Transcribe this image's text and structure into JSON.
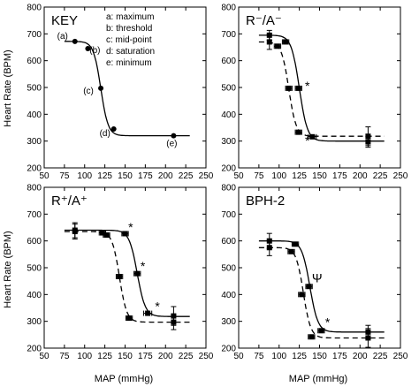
{
  "figure": {
    "y_axis_label": "Heart Rate (BPM)",
    "x_axis_label": "MAP (mmHg)"
  },
  "chart_data": [
    {
      "type": "line",
      "panel_label": "KEY",
      "xlabel": "",
      "ylabel": "Heart Rate (BPM)",
      "xlim": [
        50,
        250
      ],
      "ylim": [
        200,
        800
      ],
      "x_ticks": [
        50,
        75,
        100,
        125,
        150,
        175,
        200,
        225,
        250
      ],
      "y_ticks": [
        200,
        300,
        400,
        500,
        600,
        700,
        800
      ],
      "legend": [
        "a: maximum",
        "b: threshold",
        "c: mid-point",
        "d: saturation",
        "e: minimum"
      ],
      "series": [
        {
          "style": "solid",
          "curve": {
            "max": 672,
            "min": 320,
            "mid": 120,
            "k": 0.22
          },
          "points": [
            {
              "x": 88,
              "y": 672,
              "label": "(a)"
            },
            {
              "x": 104,
              "y": 645,
              "label": "(b)"
            },
            {
              "x": 120,
              "y": 497,
              "label": "(c)"
            },
            {
              "x": 136,
              "y": 345,
              "label": "(d)"
            },
            {
              "x": 210,
              "y": 320,
              "label": "(e)"
            }
          ]
        }
      ]
    },
    {
      "type": "line",
      "panel_label": "R⁻/A⁻",
      "xlabel": "",
      "ylabel": "",
      "xlim": [
        50,
        250
      ],
      "ylim": [
        200,
        800
      ],
      "x_ticks": [
        50,
        75,
        100,
        125,
        150,
        175,
        200,
        225,
        250
      ],
      "y_ticks": [
        200,
        300,
        400,
        500,
        600,
        700,
        800
      ],
      "annotations": [
        {
          "text": "*",
          "x": 135,
          "y": 490
        },
        {
          "text": "*",
          "x": 135,
          "y": 285
        }
      ],
      "series": [
        {
          "style": "solid",
          "curve": {
            "max": 695,
            "min": 300,
            "mid": 125,
            "k": 0.2
          },
          "points": [
            {
              "x": 88,
              "y": 695,
              "err": 18
            },
            {
              "x": 108,
              "y": 670,
              "xerr": 4
            },
            {
              "x": 124,
              "y": 497,
              "xerr": 4
            },
            {
              "x": 141,
              "y": 316,
              "xerr": 5
            },
            {
              "x": 210,
              "y": 297,
              "err": 20
            }
          ]
        },
        {
          "style": "dashed",
          "curve": {
            "max": 670,
            "min": 318,
            "mid": 112,
            "k": 0.22
          },
          "points": [
            {
              "x": 88,
              "y": 670,
              "err": 28
            },
            {
              "x": 98,
              "y": 654,
              "xerr": 4
            },
            {
              "x": 112,
              "y": 497,
              "xerr": 4
            },
            {
              "x": 124,
              "y": 333,
              "xerr": 4
            },
            {
              "x": 210,
              "y": 318,
              "err": 35
            }
          ]
        }
      ]
    },
    {
      "type": "line",
      "panel_label": "R⁺/A⁺",
      "xlabel": "MAP (mmHg)",
      "ylabel": "Heart Rate (BPM)",
      "xlim": [
        50,
        250
      ],
      "ylim": [
        200,
        800
      ],
      "x_ticks": [
        50,
        75,
        100,
        125,
        150,
        175,
        200,
        225,
        250
      ],
      "y_ticks": [
        200,
        300,
        400,
        500,
        600,
        700,
        800
      ],
      "annotations": [
        {
          "text": "*",
          "x": 157,
          "y": 635
        },
        {
          "text": "*",
          "x": 172,
          "y": 490
        },
        {
          "text": "*",
          "x": 190,
          "y": 340
        }
      ],
      "series": [
        {
          "style": "solid",
          "curve": {
            "max": 640,
            "min": 318,
            "mid": 165,
            "k": 0.2
          },
          "points": [
            {
              "x": 88,
              "y": 640,
              "err": 28
            },
            {
              "x": 122,
              "y": 630,
              "xerr": 4
            },
            {
              "x": 150,
              "y": 627,
              "xerr": 4
            },
            {
              "x": 165,
              "y": 478,
              "xerr": 4
            },
            {
              "x": 178,
              "y": 330,
              "xerr": 5
            },
            {
              "x": 210,
              "y": 320,
              "err": 35
            }
          ]
        },
        {
          "style": "dashed",
          "curve": {
            "max": 635,
            "min": 297,
            "mid": 143,
            "k": 0.22
          },
          "points": [
            {
              "x": 88,
              "y": 635,
              "err": 28
            },
            {
              "x": 127,
              "y": 622,
              "xerr": 4
            },
            {
              "x": 143,
              "y": 467,
              "xerr": 4
            },
            {
              "x": 155,
              "y": 312,
              "xerr": 4
            },
            {
              "x": 210,
              "y": 297,
              "err": 28
            }
          ]
        }
      ]
    },
    {
      "type": "line",
      "panel_label": "BPH-2",
      "xlabel": "MAP (mmHg)",
      "ylabel": "",
      "xlim": [
        50,
        250
      ],
      "ylim": [
        200,
        800
      ],
      "x_ticks": [
        50,
        75,
        100,
        125,
        150,
        175,
        200,
        225,
        250
      ],
      "y_ticks": [
        200,
        300,
        400,
        500,
        600,
        700,
        800
      ],
      "annotations": [
        {
          "text": "Ψ",
          "x": 147,
          "y": 445
        },
        {
          "text": "*",
          "x": 160,
          "y": 280
        }
      ],
      "series": [
        {
          "style": "solid",
          "curve": {
            "max": 600,
            "min": 260,
            "mid": 138,
            "k": 0.2
          },
          "points": [
            {
              "x": 88,
              "y": 600,
              "err": 28
            },
            {
              "x": 120,
              "y": 588,
              "xerr": 4
            },
            {
              "x": 137,
              "y": 430,
              "xerr": 4
            },
            {
              "x": 152,
              "y": 265,
              "xerr": 4
            },
            {
              "x": 210,
              "y": 260,
              "err": 25
            }
          ]
        },
        {
          "style": "dashed",
          "curve": {
            "max": 575,
            "min": 238,
            "mid": 130,
            "k": 0.22
          },
          "points": [
            {
              "x": 88,
              "y": 575,
              "err": 30
            },
            {
              "x": 115,
              "y": 560,
              "xerr": 4
            },
            {
              "x": 128,
              "y": 400,
              "xerr": 4
            },
            {
              "x": 140,
              "y": 242,
              "xerr": 4
            },
            {
              "x": 210,
              "y": 238,
              "err": 35
            }
          ]
        }
      ]
    }
  ]
}
